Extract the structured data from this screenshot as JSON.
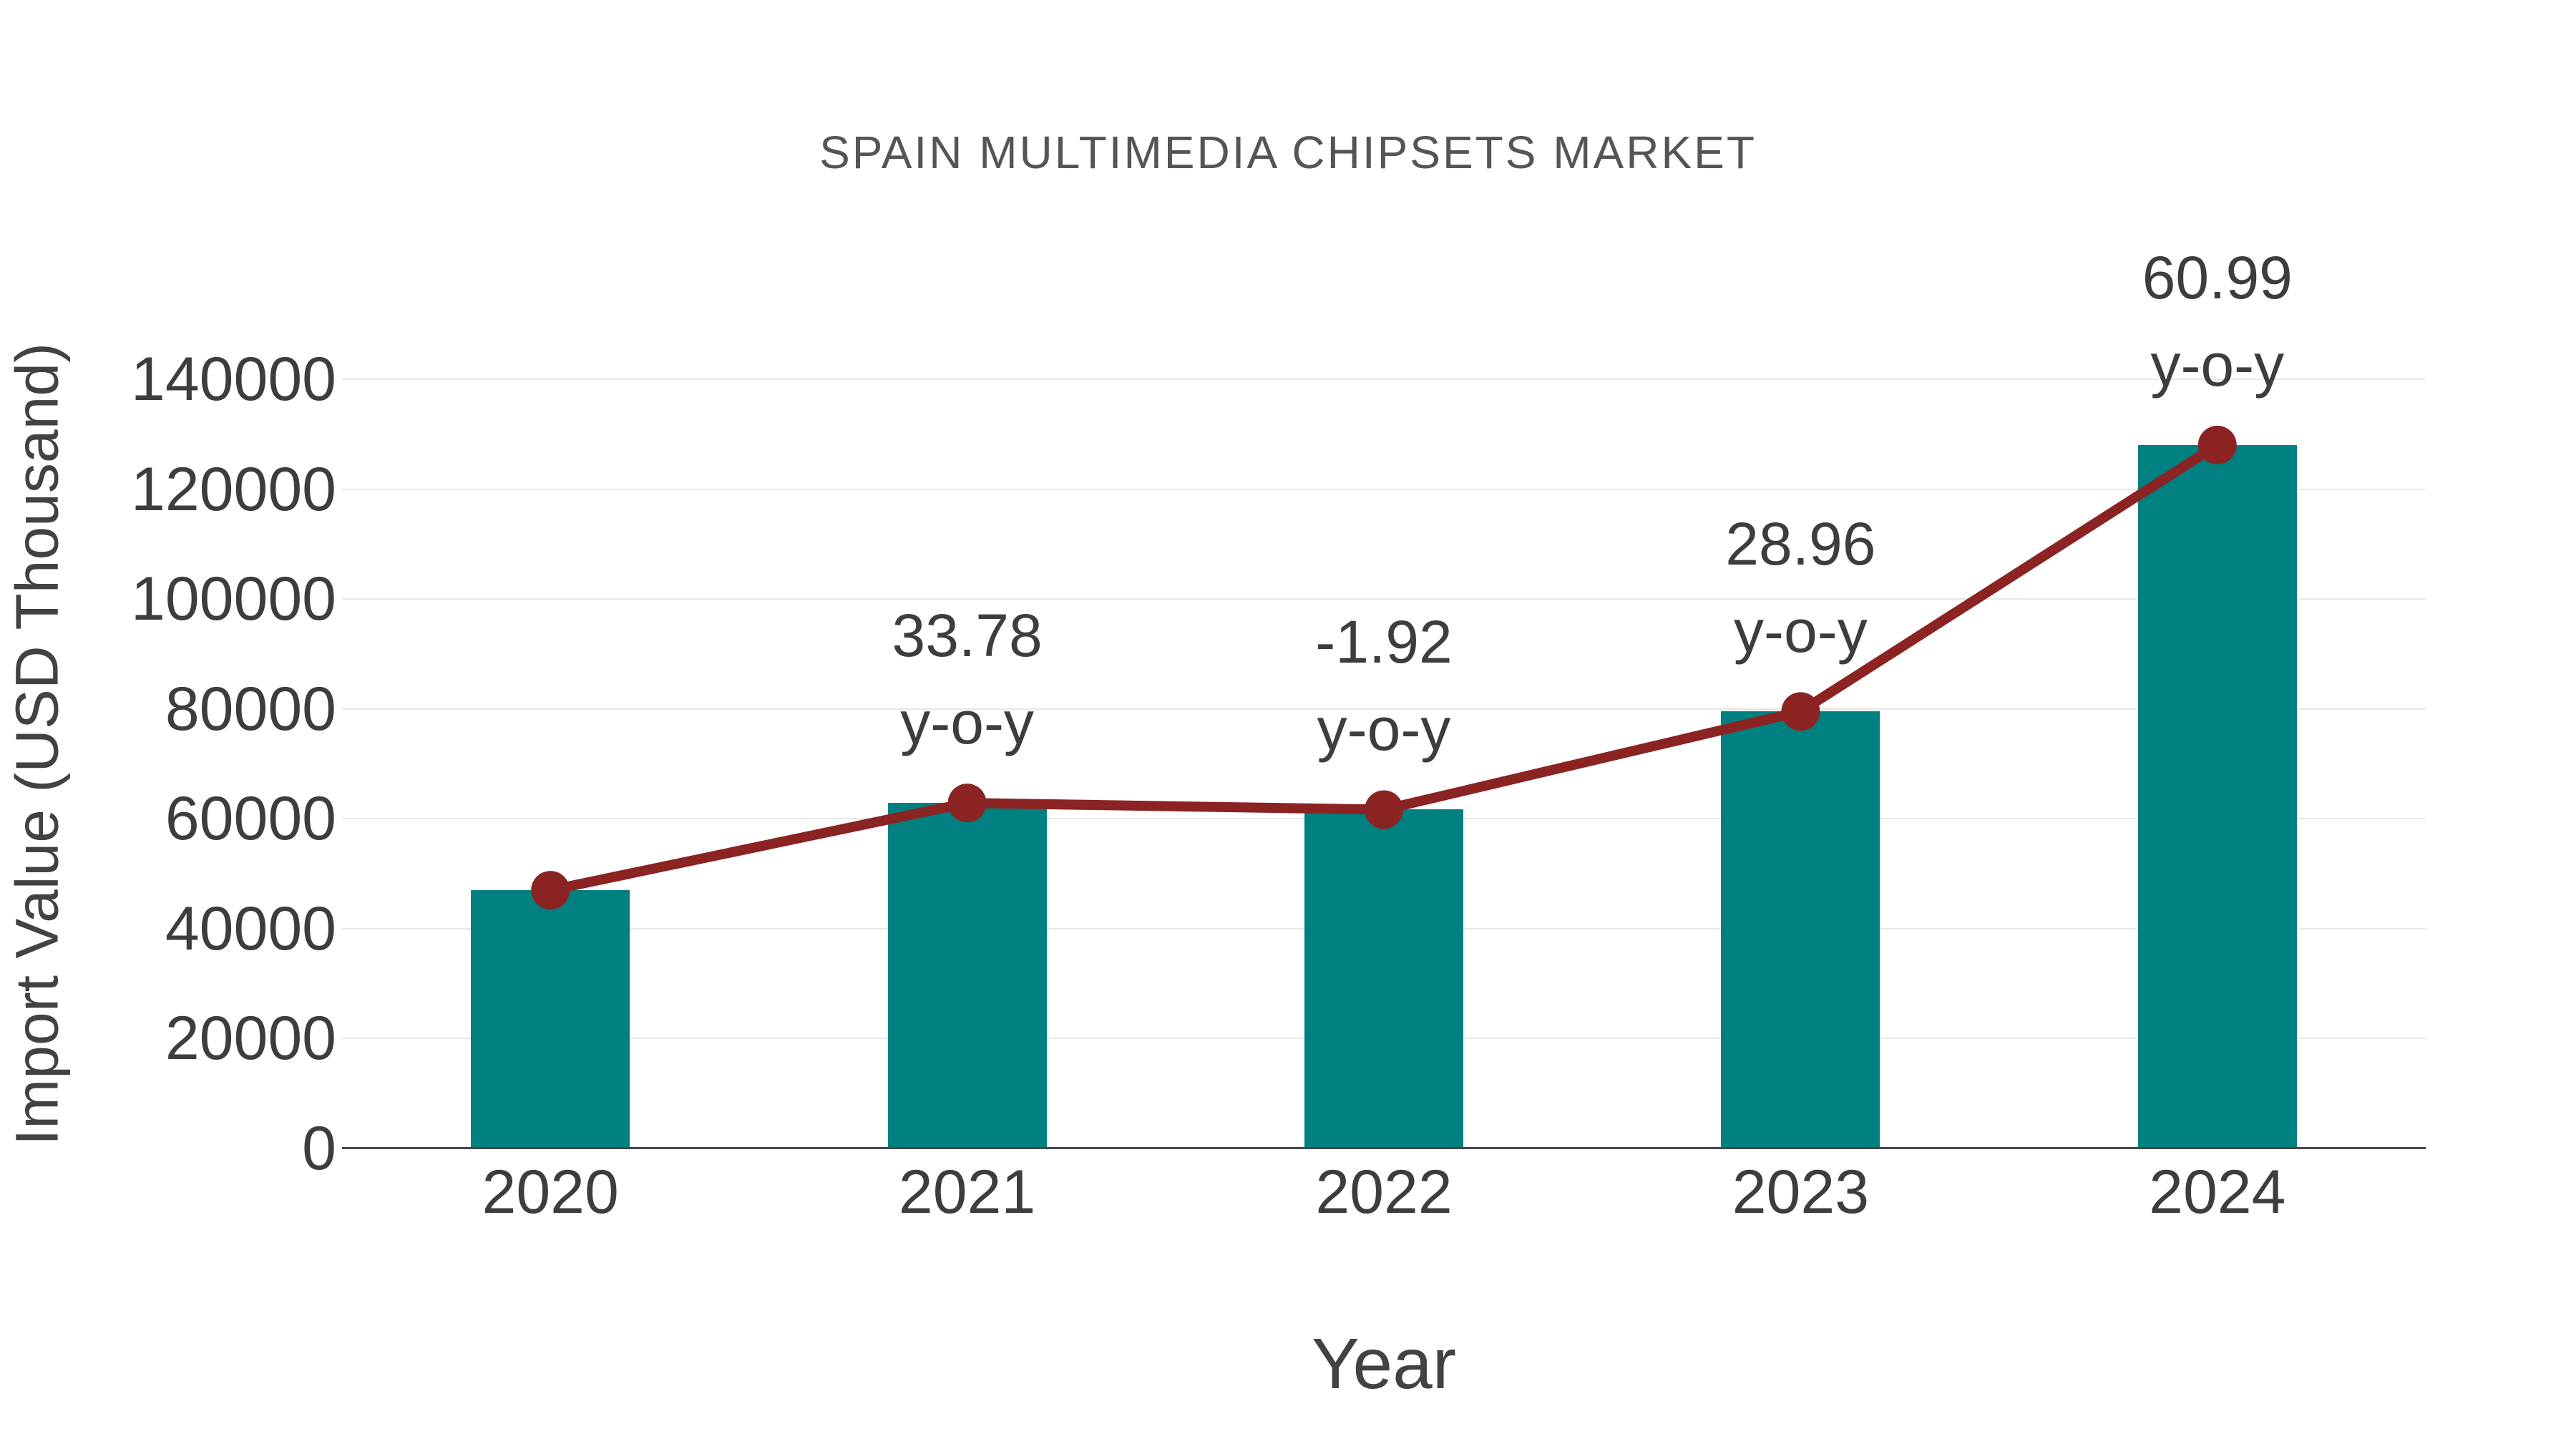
{
  "chart_data": {
    "type": "bar+line",
    "title": "SPAIN MULTIMEDIA CHIPSETS MARKET",
    "xlabel": "Year",
    "ylabel": "Import Value (USD Thousand)",
    "categories": [
      "2020",
      "2021",
      "2022",
      "2023",
      "2024"
    ],
    "series": [
      {
        "name": "import-value-bars",
        "type": "bar",
        "values": [
          47000,
          62880,
          61670,
          79530,
          128030
        ]
      },
      {
        "name": "import-value-trend",
        "type": "line",
        "values": [
          47000,
          62880,
          61670,
          79530,
          128030
        ]
      }
    ],
    "annotations": [
      {
        "category": "2021",
        "value": "33.78",
        "label": "y-o-y"
      },
      {
        "category": "2022",
        "value": "-1.92",
        "label": "y-o-y"
      },
      {
        "category": "2023",
        "value": "28.96",
        "label": "y-o-y"
      },
      {
        "category": "2024",
        "value": "60.99",
        "label": "y-o-y"
      }
    ],
    "yticks": [
      0,
      20000,
      40000,
      60000,
      80000,
      100000,
      120000,
      140000
    ],
    "ytick_labels": [
      "0",
      "20000",
      "40000",
      "60000",
      "80000",
      "100000",
      "120000",
      "140000"
    ],
    "ylim": [
      0,
      152000
    ],
    "grid": "horizontal",
    "legend": "none",
    "colors": {
      "bar": "#008080",
      "line": "#8B2323",
      "marker": "#8B2323",
      "grid": "#e8e8e8",
      "axis": "#474747",
      "tick_text": "#3d3d3d",
      "annotation_text": "#3d3d3d",
      "title_text": "#555555",
      "axis_title_text": "#424242"
    }
  }
}
